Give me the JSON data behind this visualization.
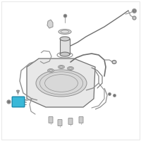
{
  "bg_color": "#ffffff",
  "lc": "#909090",
  "lc2": "#707070",
  "hl": "#3ab8d8",
  "hl_edge": "#1a88aa",
  "figsize": [
    2.0,
    2.0
  ],
  "dpi": 100
}
